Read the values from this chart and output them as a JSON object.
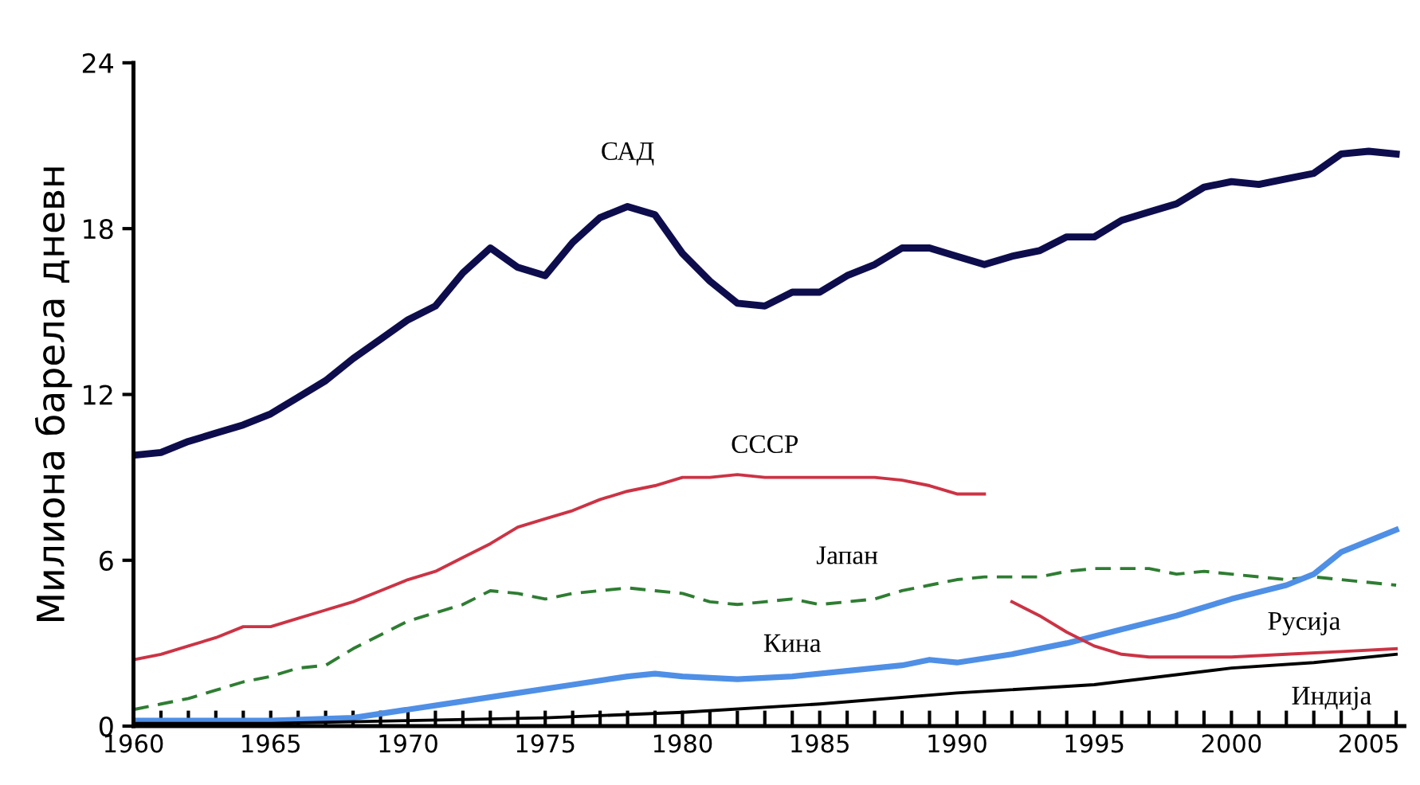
{
  "chart_data": {
    "type": "line",
    "ylabel": "Милиона барела дневн",
    "xlim": [
      1960,
      2006.3
    ],
    "ylim": [
      0,
      24
    ],
    "yticks": [
      0,
      6,
      12,
      18,
      24
    ],
    "xticks": [
      1960,
      {
        "value": 1961,
        "label": null
      },
      {
        "value": 1962,
        "label": null
      },
      {
        "value": 1963,
        "label": null
      },
      {
        "value": 1964,
        "label": null
      },
      1965,
      {
        "value": 1966,
        "label": null
      },
      {
        "value": 1967,
        "label": null
      },
      {
        "value": 1968,
        "label": null
      },
      {
        "value": 1969,
        "label": null
      },
      1970,
      {
        "value": 1971,
        "label": null
      },
      {
        "value": 1972,
        "label": null
      },
      {
        "value": 1973,
        "label": null
      },
      {
        "value": 1974,
        "label": null
      },
      1975,
      {
        "value": 1976,
        "label": null
      },
      {
        "value": 1977,
        "label": null
      },
      {
        "value": 1978,
        "label": null
      },
      {
        "value": 1979,
        "label": null
      },
      1980,
      {
        "value": 1981,
        "label": null
      },
      {
        "value": 1982,
        "label": null
      },
      {
        "value": 1983,
        "label": null
      },
      {
        "value": 1984,
        "label": null
      },
      1985,
      {
        "value": 1986,
        "label": null
      },
      {
        "value": 1987,
        "label": null
      },
      {
        "value": 1988,
        "label": null
      },
      {
        "value": 1989,
        "label": null
      },
      1990,
      {
        "value": 1991,
        "label": null
      },
      {
        "value": 1992,
        "label": null
      },
      {
        "value": 1993,
        "label": null
      },
      {
        "value": 1994,
        "label": null
      },
      1995,
      {
        "value": 1996,
        "label": null
      },
      {
        "value": 1997,
        "label": null
      },
      {
        "value": 1998,
        "label": null
      },
      {
        "value": 1999,
        "label": null
      },
      2000,
      {
        "value": 2001,
        "label": null
      },
      {
        "value": 2002,
        "label": null
      },
      {
        "value": 2003,
        "label": null
      },
      {
        "value": 2004,
        "label": null
      },
      2005,
      {
        "value": 2006,
        "label": null
      }
    ],
    "grid": false,
    "marker": "none",
    "series": [
      {
        "name": "САД",
        "color": "#0d0d4d",
        "line_style": "solid",
        "x": [
          1960,
          1961,
          1962,
          1963,
          1964,
          1965,
          1966,
          1967,
          1968,
          1969,
          1970,
          1971,
          1972,
          1973,
          1974,
          1975,
          1976,
          1977,
          1978,
          1979,
          1980,
          1981,
          1982,
          1983,
          1984,
          1985,
          1986,
          1987,
          1988,
          1989,
          1990,
          1991,
          1992,
          1993,
          1994,
          1995,
          1996,
          1997,
          1998,
          1999,
          2000,
          2001,
          2002,
          2003,
          2004,
          2005,
          2006
        ],
        "values": [
          9.8,
          9.9,
          10.3,
          10.6,
          10.9,
          11.3,
          11.9,
          12.5,
          13.3,
          14.0,
          14.7,
          15.2,
          16.4,
          17.3,
          16.6,
          16.3,
          17.5,
          18.4,
          18.8,
          18.5,
          17.1,
          16.1,
          15.3,
          15.2,
          15.7,
          15.7,
          16.3,
          16.7,
          17.3,
          17.3,
          17.0,
          16.7,
          17.0,
          17.2,
          17.7,
          17.7,
          18.3,
          18.6,
          18.9,
          19.5,
          19.7,
          19.6,
          19.8,
          20.0,
          20.7,
          20.8,
          20.7
        ]
      },
      {
        "name": "СССР",
        "color": "#cc3344",
        "line_style": "solid",
        "x": [
          1960,
          1961,
          1962,
          1963,
          1964,
          1965,
          1966,
          1967,
          1968,
          1969,
          1970,
          1971,
          1972,
          1973,
          1974,
          1975,
          1976,
          1977,
          1978,
          1979,
          1980,
          1981,
          1982,
          1983,
          1984,
          1985,
          1986,
          1987,
          1988,
          1989,
          1990,
          1991
        ],
        "values": [
          2.4,
          2.6,
          2.9,
          3.2,
          3.6,
          3.6,
          3.9,
          4.2,
          4.5,
          4.9,
          5.3,
          5.6,
          6.1,
          6.6,
          7.2,
          7.5,
          7.8,
          8.2,
          8.5,
          8.7,
          9.0,
          9.0,
          9.1,
          9.0,
          9.0,
          9.0,
          9.0,
          9.0,
          8.9,
          8.7,
          8.4,
          8.4
        ]
      },
      {
        "name": "Јапан",
        "color": "#2e7d32",
        "line_style": "dashed",
        "x": [
          1960,
          1961,
          1962,
          1963,
          1964,
          1965,
          1966,
          1967,
          1968,
          1969,
          1970,
          1971,
          1972,
          1973,
          1974,
          1975,
          1976,
          1977,
          1978,
          1979,
          1980,
          1981,
          1982,
          1983,
          1984,
          1985,
          1986,
          1987,
          1988,
          1989,
          1990,
          1991,
          1992,
          1993,
          1994,
          1995,
          1996,
          1997,
          1998,
          1999,
          2000,
          2001,
          2002,
          2003,
          2004,
          2005,
          2006
        ],
        "values": [
          0.6,
          0.8,
          1.0,
          1.3,
          1.6,
          1.8,
          2.1,
          2.2,
          2.8,
          3.3,
          3.8,
          4.1,
          4.4,
          4.9,
          4.8,
          4.6,
          4.8,
          4.9,
          5.0,
          4.9,
          4.8,
          4.5,
          4.4,
          4.5,
          4.6,
          4.4,
          4.5,
          4.6,
          4.9,
          5.1,
          5.3,
          5.4,
          5.4,
          5.4,
          5.6,
          5.7,
          5.7,
          5.7,
          5.5,
          5.6,
          5.5,
          5.4,
          5.3,
          5.4,
          5.3,
          5.2,
          5.1
        ]
      },
      {
        "name": "Кина",
        "color": "#4f8fe6",
        "line_style": "solid",
        "x": [
          1960,
          1965,
          1968,
          1970,
          1972,
          1974,
          1976,
          1978,
          1979,
          1980,
          1982,
          1984,
          1986,
          1988,
          1989,
          1990,
          1992,
          1994,
          1996,
          1998,
          2000,
          2002,
          2003,
          2004,
          2005,
          2006
        ],
        "values": [
          0.2,
          0.2,
          0.3,
          0.6,
          0.9,
          1.2,
          1.5,
          1.8,
          1.9,
          1.8,
          1.7,
          1.8,
          2.0,
          2.2,
          2.4,
          2.3,
          2.6,
          3.0,
          3.5,
          4.0,
          4.6,
          5.1,
          5.5,
          6.3,
          6.7,
          7.1
        ]
      },
      {
        "name": "Русија",
        "color": "#cc3344",
        "line_style": "solid",
        "x": [
          1992,
          1993,
          1994,
          1995,
          1996,
          1997,
          1998,
          1999,
          2000,
          2002,
          2004,
          2006
        ],
        "values": [
          4.5,
          4.0,
          3.4,
          2.9,
          2.6,
          2.5,
          2.5,
          2.5,
          2.5,
          2.6,
          2.7,
          2.8
        ]
      },
      {
        "name": "Индија",
        "color": "#000000",
        "line_style": "solid",
        "x": [
          1960,
          1965,
          1970,
          1975,
          1980,
          1985,
          1990,
          1995,
          2000,
          2003,
          2006
        ],
        "values": [
          0.1,
          0.1,
          0.2,
          0.3,
          0.5,
          0.8,
          1.2,
          1.5,
          2.1,
          2.3,
          2.6
        ]
      }
    ]
  }
}
